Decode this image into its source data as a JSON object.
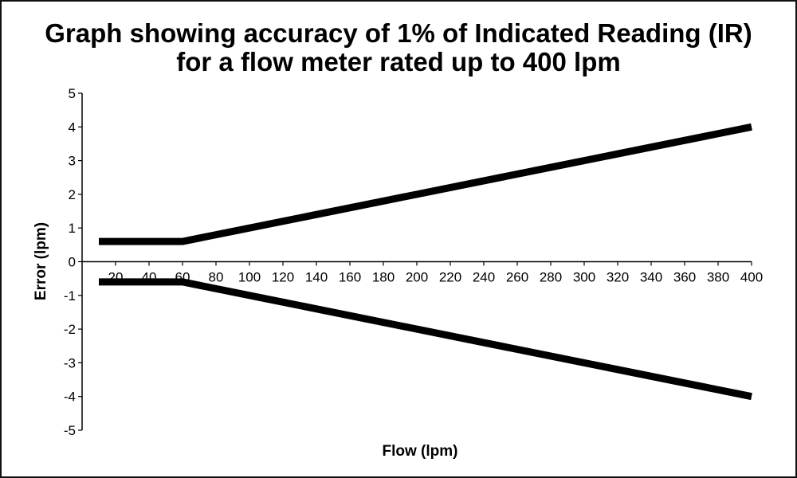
{
  "chart_data": {
    "type": "line",
    "title_line1": "Graph showing accuracy of 1% of Indicated Reading (IR)",
    "title_line2": "for a flow meter rated up to 400 lpm",
    "xlabel": "Flow (lpm)",
    "ylabel": "Error (lpm)",
    "xlim": [
      0,
      400
    ],
    "ylim": [
      -5,
      5
    ],
    "x_ticks": [
      20,
      40,
      60,
      80,
      100,
      120,
      140,
      160,
      180,
      200,
      220,
      240,
      260,
      280,
      300,
      320,
      340,
      360,
      380,
      400
    ],
    "y_ticks": [
      -5,
      -4,
      -3,
      -2,
      -1,
      0,
      1,
      2,
      3,
      4,
      5
    ],
    "grid": false,
    "line_color": "#000000",
    "series": [
      {
        "x": [
          10,
          60,
          400
        ],
        "y": [
          0.6,
          0.6,
          4
        ]
      },
      {
        "x": [
          10,
          60,
          400
        ],
        "y": [
          -0.6,
          -0.6,
          -4
        ]
      }
    ]
  }
}
